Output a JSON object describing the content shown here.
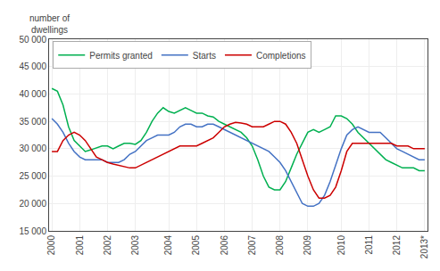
{
  "chart_data": {
    "type": "line",
    "ylabel": "number of\ndwellings",
    "categories": [
      "2000",
      null,
      null,
      null,
      null,
      "2001",
      null,
      null,
      null,
      null,
      "2002",
      null,
      null,
      null,
      null,
      "2003",
      null,
      null,
      null,
      null,
      null,
      "2004",
      null,
      null,
      null,
      null,
      "2005",
      null,
      null,
      null,
      null,
      "2006",
      null,
      null,
      null,
      null,
      "2007",
      null,
      null,
      null,
      null,
      "2008",
      null,
      null,
      null,
      null,
      "2009",
      null,
      null,
      null,
      null,
      null,
      "2010",
      null,
      null,
      null,
      null,
      "2011",
      null,
      null,
      null,
      null,
      "2012",
      null,
      null,
      null,
      null,
      "2013*"
    ],
    "series": [
      {
        "name": "Permits granted",
        "color": "#00b050",
        "values": [
          41000,
          40500,
          38000,
          34000,
          31500,
          30500,
          29500,
          29800,
          30200,
          30500,
          30500,
          30000,
          30500,
          31000,
          31000,
          30800,
          31500,
          33000,
          35000,
          36500,
          37500,
          36800,
          36500,
          37000,
          37500,
          37000,
          36500,
          36500,
          36000,
          35800,
          35000,
          34500,
          34000,
          33500,
          33000,
          32000,
          30500,
          28000,
          25000,
          23000,
          22500,
          22500,
          24000,
          26500,
          29000,
          31000,
          33000,
          33500,
          33000,
          33500,
          34000,
          36000,
          36000,
          35500,
          34500,
          33000,
          32000,
          31000,
          30000,
          29000,
          28000,
          27500,
          27000,
          26500,
          26500,
          26500,
          26000,
          26000
        ]
      },
      {
        "name": "Starts",
        "color": "#4472c4",
        "values": [
          35500,
          34500,
          33000,
          31000,
          29500,
          28500,
          28000,
          28000,
          28000,
          28000,
          27500,
          27500,
          27500,
          28000,
          29000,
          29500,
          30500,
          31500,
          32000,
          32500,
          32500,
          32500,
          33000,
          34000,
          34500,
          34500,
          34000,
          34000,
          34500,
          34500,
          34000,
          33500,
          33000,
          32500,
          32000,
          31500,
          31000,
          30500,
          30000,
          29500,
          28500,
          27500,
          26000,
          24000,
          22000,
          20000,
          19500,
          19500,
          20000,
          21500,
          24000,
          27000,
          30000,
          32500,
          33500,
          34000,
          33500,
          33000,
          33000,
          33000,
          32000,
          31000,
          30000,
          29500,
          29000,
          28500,
          28000,
          28000
        ]
      },
      {
        "name": "Completions",
        "color": "#cc0000",
        "values": [
          29500,
          29500,
          31500,
          32500,
          33000,
          32500,
          31500,
          30000,
          28500,
          28000,
          27500,
          27200,
          27000,
          26700,
          26500,
          26500,
          27000,
          27500,
          28000,
          28500,
          29000,
          29500,
          30000,
          30500,
          30500,
          30500,
          30500,
          31000,
          31500,
          32000,
          33000,
          34000,
          34500,
          34800,
          34700,
          34500,
          34000,
          34000,
          34000,
          34500,
          35000,
          35000,
          34500,
          33000,
          31000,
          28000,
          25000,
          22500,
          21000,
          21000,
          21500,
          23000,
          26000,
          29500,
          31000,
          31000,
          31000,
          31000,
          31000,
          31000,
          31000,
          31000,
          30500,
          30500,
          30500,
          30000,
          30000,
          30000
        ]
      }
    ],
    "ylim": [
      15000,
      50000
    ],
    "yticks": [
      {
        "value": 15000,
        "label": "15 000"
      },
      {
        "value": 20000,
        "label": "20 000"
      },
      {
        "value": 25000,
        "label": "25 000"
      },
      {
        "value": 30000,
        "label": "30 000"
      },
      {
        "value": 35000,
        "label": "35 000"
      },
      {
        "value": 40000,
        "label": "40 000"
      },
      {
        "value": 45000,
        "label": "45 000"
      },
      {
        "value": 50000,
        "label": "50 000"
      }
    ],
    "grid": true,
    "legend": "upper left"
  }
}
